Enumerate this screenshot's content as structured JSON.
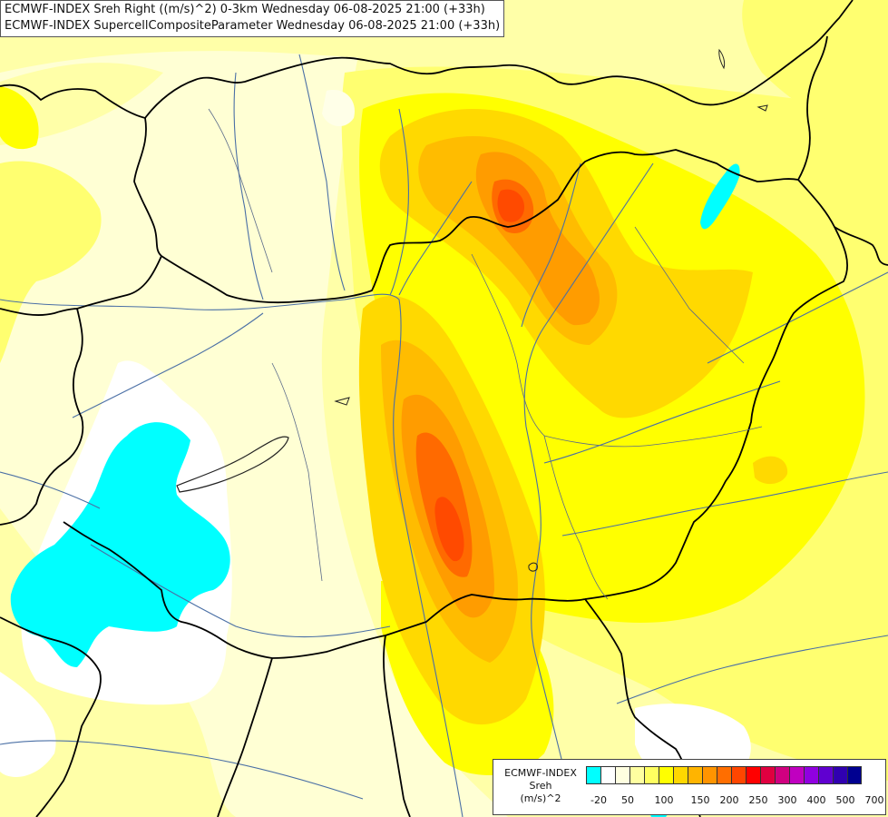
{
  "header": {
    "line1": "ECMWF-INDEX Sreh Right ((m/s)^2) 0-3km Wednesday 06-08-2025 21:00 (+33h)",
    "line2": "ECMWF-INDEX SupercellCompositeParameter Wednesday 06-08-2025 21:00 (+33h)"
  },
  "legend": {
    "title_line1": "ECMWF-INDEX",
    "title_line2": "Sreh",
    "title_line3": "(m/s)^2",
    "colors": [
      "#00ffff",
      "#ffffff",
      "#ffffe0",
      "#ffffa0",
      "#ffff60",
      "#ffff00",
      "#ffd700",
      "#ffb400",
      "#ff9400",
      "#ff6e00",
      "#ff4600",
      "#ff0000",
      "#e00040",
      "#d00080",
      "#c000c0",
      "#9000e0",
      "#6000d0",
      "#3000b0",
      "#000090"
    ],
    "ticks": [
      "-20",
      "50",
      "100",
      "150",
      "200",
      "250",
      "300",
      "400",
      "500",
      "700"
    ]
  },
  "map": {
    "field_colors": {
      "base": "#ffffd4",
      "pale": "#ffffa8",
      "light": "#ffff70",
      "yellow": "#ffff00",
      "gold": "#ffd900",
      "amber": "#ffbc00",
      "orange": "#ff9c00",
      "dark_orange": "#ff6a00",
      "red_orange": "#ff4a00",
      "white": "#ffffff",
      "cyan": "#00ffff"
    },
    "border_color": "#000000",
    "river_color": "#4a6fa5"
  }
}
